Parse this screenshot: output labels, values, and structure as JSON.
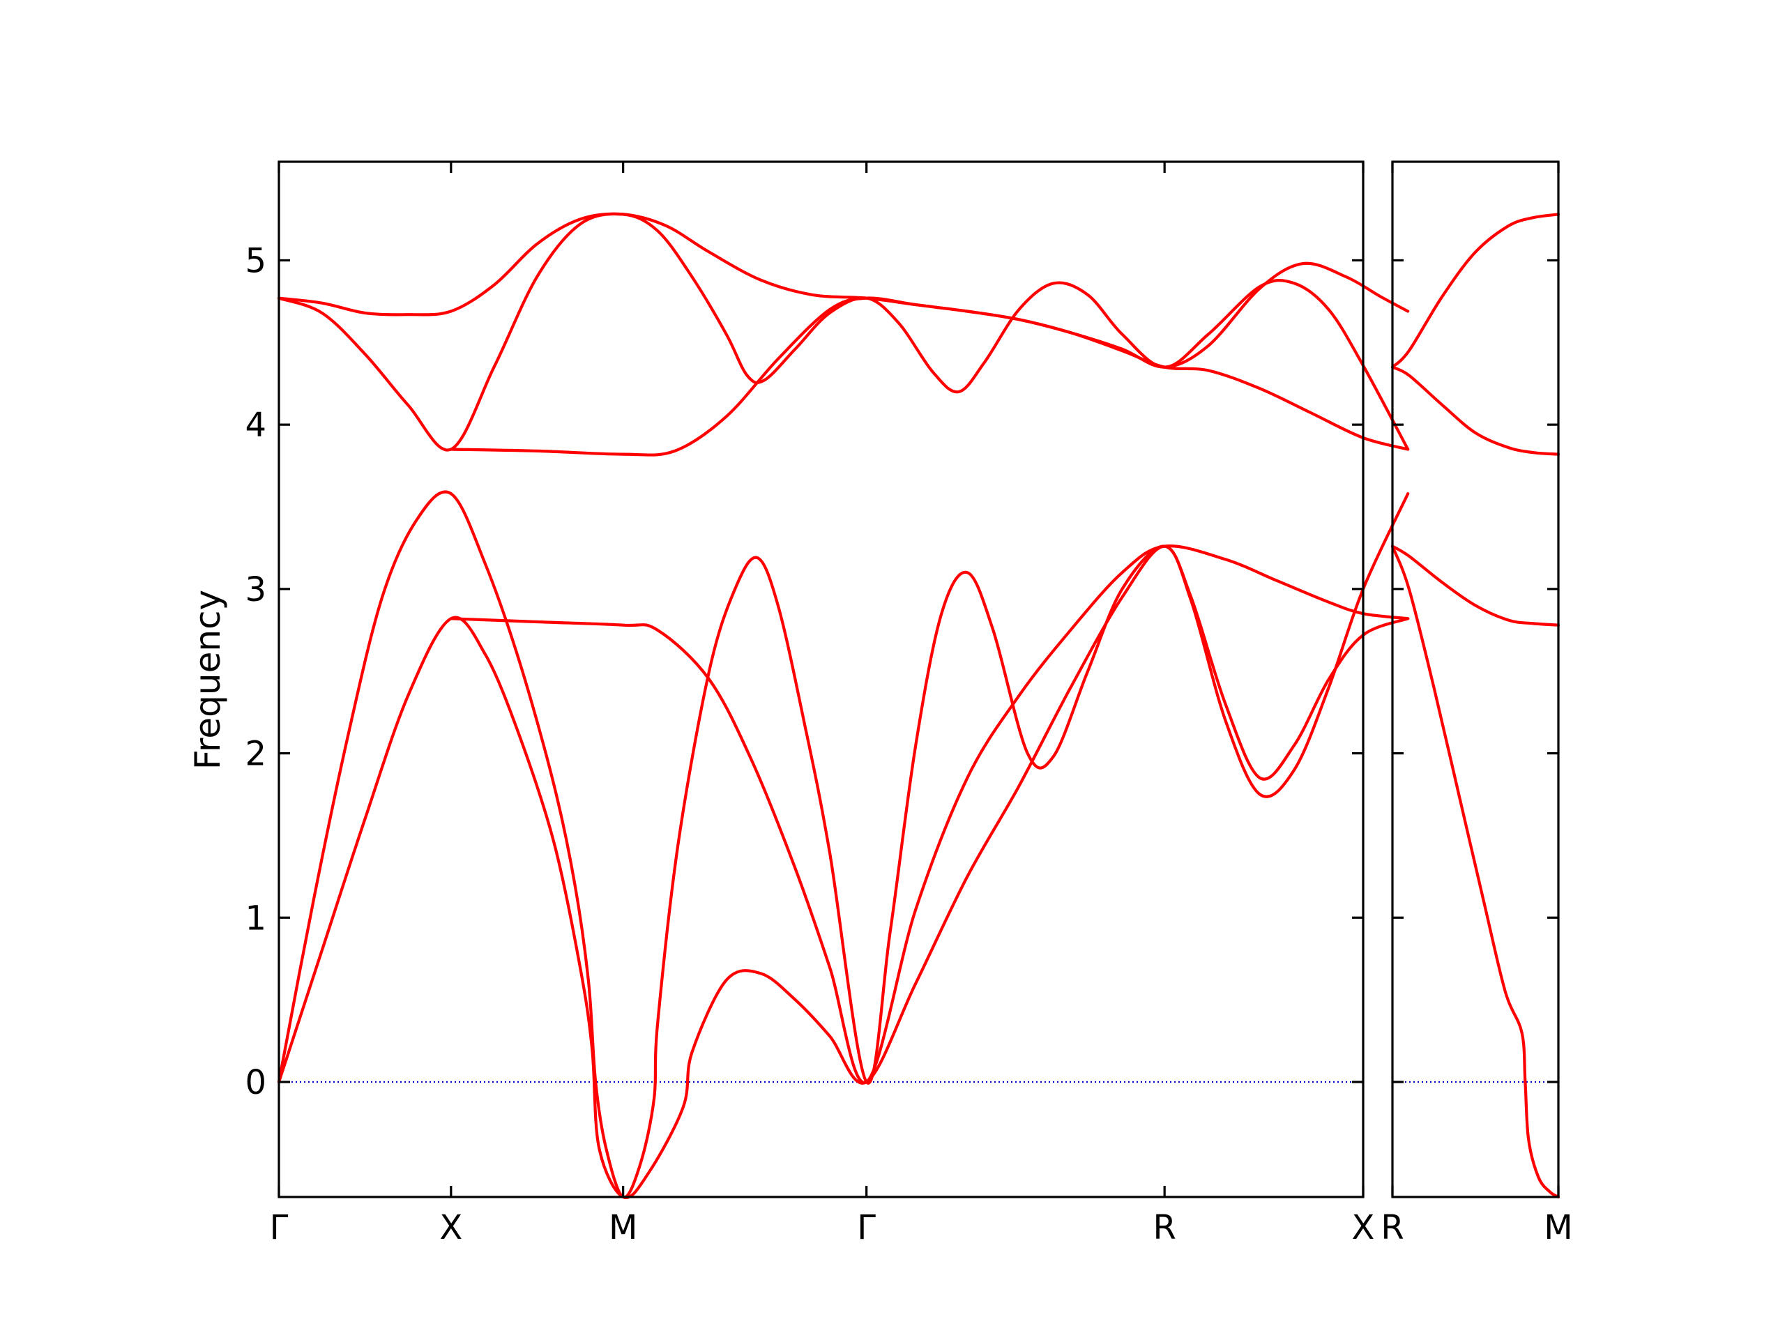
{
  "chart_data": {
    "type": "line",
    "ylabel": "Frequency",
    "ylim": [
      -0.7,
      5.6
    ],
    "yticks": [
      0,
      1,
      2,
      3,
      4,
      5
    ],
    "grid": false,
    "colors": {
      "bands": "#ff0000",
      "zero_line": "#0000cc",
      "axes": "#000000"
    },
    "panels": [
      {
        "id": "main",
        "xlim": [
          0,
          6.3
        ],
        "xticks": [
          {
            "x": 0,
            "label": "Γ"
          },
          {
            "x": 1,
            "label": "X"
          },
          {
            "x": 2,
            "label": "M"
          },
          {
            "x": 3.414,
            "label": "Γ"
          },
          {
            "x": 5.146,
            "label": "R"
          },
          {
            "x": 6.56,
            "label": "X"
          }
        ],
        "series": [
          {
            "values": [
              [
                0,
                4.77
              ],
              [
                0.25,
                4.74
              ],
              [
                0.5,
                4.68
              ],
              [
                0.75,
                4.67
              ],
              [
                1,
                4.69
              ],
              [
                1.25,
                4.85
              ],
              [
                1.5,
                5.1
              ],
              [
                1.75,
                5.25
              ],
              [
                2,
                5.28
              ],
              [
                2.25,
                5.21
              ],
              [
                2.5,
                5.05
              ],
              [
                2.8,
                4.88
              ],
              [
                3.1,
                4.79
              ],
              [
                3.414,
                4.77
              ],
              [
                3.7,
                4.73
              ],
              [
                4,
                4.69
              ],
              [
                4.3,
                4.64
              ],
              [
                4.6,
                4.56
              ],
              [
                4.9,
                4.45
              ],
              [
                5.146,
                4.35
              ],
              [
                5.4,
                4.33
              ],
              [
                5.7,
                4.22
              ],
              [
                6,
                4.07
              ],
              [
                6.3,
                3.92
              ],
              [
                6.56,
                3.85
              ]
            ]
          },
          {
            "values": [
              [
                0,
                4.77
              ],
              [
                0.25,
                4.68
              ],
              [
                0.5,
                4.43
              ],
              [
                0.75,
                4.12
              ],
              [
                1,
                3.85
              ],
              [
                1.25,
                4.35
              ],
              [
                1.5,
                4.9
              ],
              [
                1.75,
                5.22
              ],
              [
                2,
                5.28
              ],
              [
                2.2,
                5.18
              ],
              [
                2.4,
                4.9
              ],
              [
                2.6,
                4.55
              ],
              [
                2.72,
                4.3
              ],
              [
                2.82,
                4.27
              ],
              [
                3,
                4.46
              ],
              [
                3.2,
                4.68
              ],
              [
                3.414,
                4.77
              ],
              [
                3.6,
                4.62
              ],
              [
                3.8,
                4.32
              ],
              [
                3.95,
                4.2
              ],
              [
                4.1,
                4.38
              ],
              [
                4.3,
                4.7
              ],
              [
                4.5,
                4.86
              ],
              [
                4.7,
                4.79
              ],
              [
                4.9,
                4.55
              ],
              [
                5.146,
                4.35
              ],
              [
                5.4,
                4.55
              ],
              [
                5.7,
                4.84
              ],
              [
                5.9,
                4.86
              ],
              [
                6.1,
                4.7
              ],
              [
                6.3,
                4.36
              ],
              [
                6.56,
                3.85
              ]
            ]
          },
          {
            "values": [
              [
                1,
                3.85
              ],
              [
                1.5,
                3.84
              ],
              [
                2,
                3.82
              ],
              [
                2.3,
                3.84
              ],
              [
                2.6,
                4.05
              ],
              [
                2.9,
                4.4
              ],
              [
                3.2,
                4.7
              ],
              [
                3.414,
                4.77
              ],
              [
                3.7,
                4.73
              ],
              [
                4,
                4.69
              ],
              [
                4.3,
                4.64
              ],
              [
                4.6,
                4.56
              ],
              [
                4.9,
                4.46
              ],
              [
                5.146,
                4.35
              ],
              [
                5.4,
                4.48
              ],
              [
                5.7,
                4.83
              ],
              [
                5.95,
                4.98
              ],
              [
                6.2,
                4.9
              ],
              [
                6.4,
                4.78
              ],
              [
                6.56,
                4.69
              ]
            ]
          },
          {
            "values": [
              [
                0,
                0
              ],
              [
                0.2,
                1.1
              ],
              [
                0.4,
                2.1
              ],
              [
                0.6,
                2.95
              ],
              [
                0.8,
                3.42
              ],
              [
                1,
                3.58
              ],
              [
                1.2,
                3.15
              ],
              [
                1.4,
                2.55
              ],
              [
                1.6,
                1.8
              ],
              [
                1.72,
                1.2
              ],
              [
                1.8,
                0.6
              ],
              [
                1.84,
                0
              ],
              [
                1.9,
                -0.4
              ],
              [
                2,
                -0.7
              ],
              [
                2.1,
                -0.5
              ],
              [
                2.18,
                -0.1
              ],
              [
                2.2,
                0.35
              ],
              [
                2.32,
                1.45
              ],
              [
                2.5,
                2.5
              ],
              [
                2.65,
                3.0
              ],
              [
                2.78,
                3.19
              ],
              [
                2.9,
                2.9
              ],
              [
                3.05,
                2.2
              ],
              [
                3.2,
                1.4
              ],
              [
                3.414,
                0
              ],
              [
                3.55,
                0.9
              ],
              [
                3.7,
                2.05
              ],
              [
                3.85,
                2.85
              ],
              [
                4,
                3.1
              ],
              [
                4.15,
                2.75
              ],
              [
                4.35,
                2.0
              ],
              [
                4.5,
                1.98
              ],
              [
                4.7,
                2.5
              ],
              [
                4.9,
                3.0
              ],
              [
                5.146,
                3.26
              ],
              [
                5.3,
                2.95
              ],
              [
                5.5,
                2.3
              ],
              [
                5.7,
                1.85
              ],
              [
                5.9,
                2.05
              ],
              [
                6.1,
                2.45
              ],
              [
                6.3,
                2.72
              ],
              [
                6.56,
                2.82
              ]
            ]
          },
          {
            "values": [
              [
                0,
                0
              ],
              [
                0.25,
                0.8
              ],
              [
                0.5,
                1.6
              ],
              [
                0.75,
                2.35
              ],
              [
                1,
                2.82
              ],
              [
                1.2,
                2.6
              ],
              [
                1.4,
                2.1
              ],
              [
                1.6,
                1.45
              ],
              [
                1.75,
                0.7
              ],
              [
                1.82,
                0.2
              ],
              [
                1.86,
                -0.4
              ],
              [
                2,
                -0.7
              ],
              [
                2.15,
                -0.55
              ],
              [
                2.35,
                -0.15
              ],
              [
                2.4,
                0.18
              ],
              [
                2.6,
                0.62
              ],
              [
                2.8,
                0.66
              ],
              [
                3,
                0.5
              ],
              [
                3.2,
                0.28
              ],
              [
                3.414,
                0
              ],
              [
                3.7,
                0.6
              ],
              [
                4,
                1.25
              ],
              [
                4.3,
                1.8
              ],
              [
                4.6,
                2.4
              ],
              [
                4.9,
                2.95
              ],
              [
                5.146,
                3.26
              ],
              [
                5.3,
                2.93
              ],
              [
                5.5,
                2.2
              ],
              [
                5.7,
                1.75
              ],
              [
                5.9,
                1.9
              ],
              [
                6.1,
                2.4
              ],
              [
                6.3,
                3.0
              ],
              [
                6.56,
                3.58
              ]
            ]
          },
          {
            "values": [
              [
                1,
                2.82
              ],
              [
                1.5,
                2.8
              ],
              [
                2,
                2.78
              ],
              [
                2.2,
                2.75
              ],
              [
                2.5,
                2.45
              ],
              [
                2.75,
                1.95
              ],
              [
                3,
                1.3
              ],
              [
                3.2,
                0.7
              ],
              [
                3.414,
                0
              ],
              [
                3.7,
                1.05
              ],
              [
                4,
                1.85
              ],
              [
                4.3,
                2.35
              ],
              [
                4.6,
                2.75
              ],
              [
                4.9,
                3.1
              ],
              [
                5.146,
                3.26
              ],
              [
                5.5,
                3.18
              ],
              [
                5.8,
                3.05
              ],
              [
                6.1,
                2.92
              ],
              [
                6.3,
                2.85
              ],
              [
                6.56,
                2.82
              ]
            ]
          }
        ]
      },
      {
        "id": "side",
        "xlim": [
          0,
          1.0
        ],
        "xticks": [
          {
            "x": 0,
            "label": "R"
          },
          {
            "x": 1.0,
            "label": "M"
          }
        ],
        "series": [
          {
            "values": [
              [
                0,
                4.35
              ],
              [
                0.1,
                4.45
              ],
              [
                0.3,
                4.78
              ],
              [
                0.5,
                5.05
              ],
              [
                0.7,
                5.21
              ],
              [
                0.85,
                5.26
              ],
              [
                1,
                5.28
              ]
            ]
          },
          {
            "values": [
              [
                0,
                4.35
              ],
              [
                0.1,
                4.3
              ],
              [
                0.3,
                4.12
              ],
              [
                0.5,
                3.95
              ],
              [
                0.7,
                3.86
              ],
              [
                0.85,
                3.83
              ],
              [
                1,
                3.82
              ]
            ]
          },
          {
            "values": [
              [
                0,
                3.26
              ],
              [
                0.1,
                3.2
              ],
              [
                0.3,
                3.04
              ],
              [
                0.5,
                2.9
              ],
              [
                0.7,
                2.81
              ],
              [
                0.85,
                2.79
              ],
              [
                1,
                2.78
              ]
            ]
          },
          {
            "values": [
              [
                0,
                3.26
              ],
              [
                0.1,
                3.0
              ],
              [
                0.25,
                2.4
              ],
              [
                0.4,
                1.75
              ],
              [
                0.55,
                1.1
              ],
              [
                0.68,
                0.55
              ],
              [
                0.78,
                0.3
              ],
              [
                0.8,
                0
              ],
              [
                0.82,
                -0.35
              ],
              [
                0.88,
                -0.58
              ],
              [
                0.95,
                -0.67
              ],
              [
                1,
                -0.7
              ]
            ]
          }
        ]
      }
    ]
  }
}
